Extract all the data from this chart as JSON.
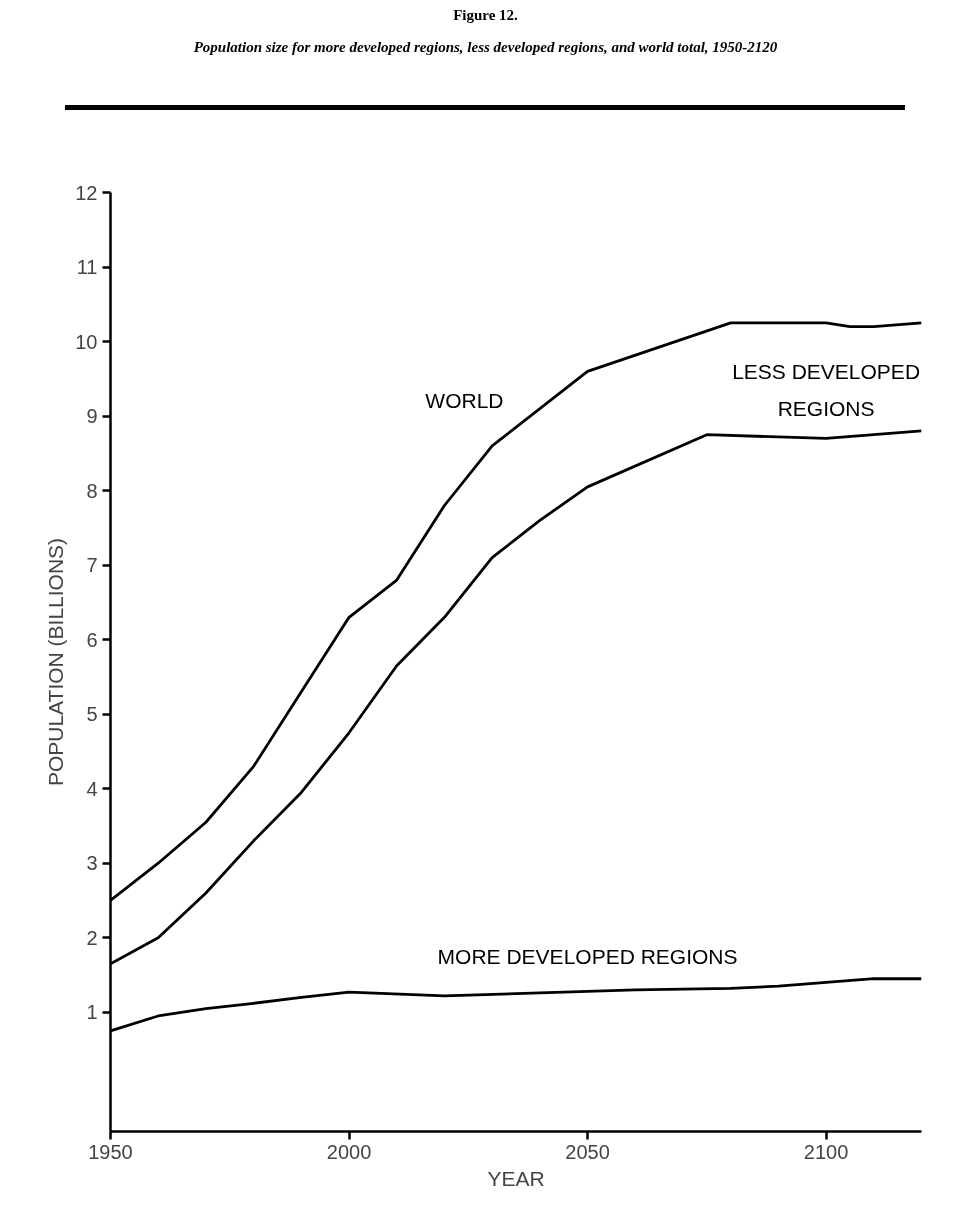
{
  "chart_data": {
    "type": "line",
    "title": "Figure 12.",
    "subtitle": "Population size for more developed regions, less developed regions, and world total, 1950-2120",
    "xlabel": "YEAR",
    "ylabel": "POPULATION (BILLIONS)",
    "xlim": [
      1950,
      2120
    ],
    "xticks": [
      1950,
      2000,
      2050,
      2100
    ],
    "ylim": [
      -0.6,
      12
    ],
    "yticks": [
      1,
      2,
      3,
      4,
      5,
      6,
      7,
      8,
      9,
      10,
      11,
      12
    ],
    "grid": false,
    "legend": false,
    "marker": "none",
    "line_style": "solid",
    "series": [
      {
        "name": "WORLD",
        "color": "#000000",
        "x": [
          1950,
          1960,
          1970,
          1980,
          1990,
          2000,
          2010,
          2020,
          2030,
          2050,
          2080,
          2100,
          2105,
          2110,
          2120
        ],
        "values": [
          2.5,
          3.0,
          3.55,
          4.3,
          5.3,
          6.3,
          6.8,
          7.8,
          8.6,
          9.6,
          10.25,
          10.25,
          10.2,
          10.2,
          10.25
        ]
      },
      {
        "name": "LESS DEVELOPED\nREGIONS",
        "color": "#000000",
        "x": [
          1950,
          1960,
          1970,
          1980,
          1990,
          2000,
          2010,
          2020,
          2030,
          2040,
          2050,
          2075,
          2100,
          2120
        ],
        "values": [
          1.65,
          2.0,
          2.6,
          3.3,
          3.95,
          4.75,
          5.65,
          6.3,
          7.1,
          7.6,
          8.05,
          8.75,
          8.7,
          8.8
        ]
      },
      {
        "name": "MORE DEVELOPED REGIONS",
        "color": "#000000",
        "x": [
          1950,
          1960,
          1970,
          1980,
          1990,
          2000,
          2020,
          2040,
          2060,
          2080,
          2090,
          2100,
          2110,
          2120
        ],
        "values": [
          0.75,
          0.95,
          1.05,
          1.12,
          1.2,
          1.27,
          1.22,
          1.26,
          1.3,
          1.32,
          1.35,
          1.4,
          1.45,
          1.45
        ]
      }
    ]
  }
}
